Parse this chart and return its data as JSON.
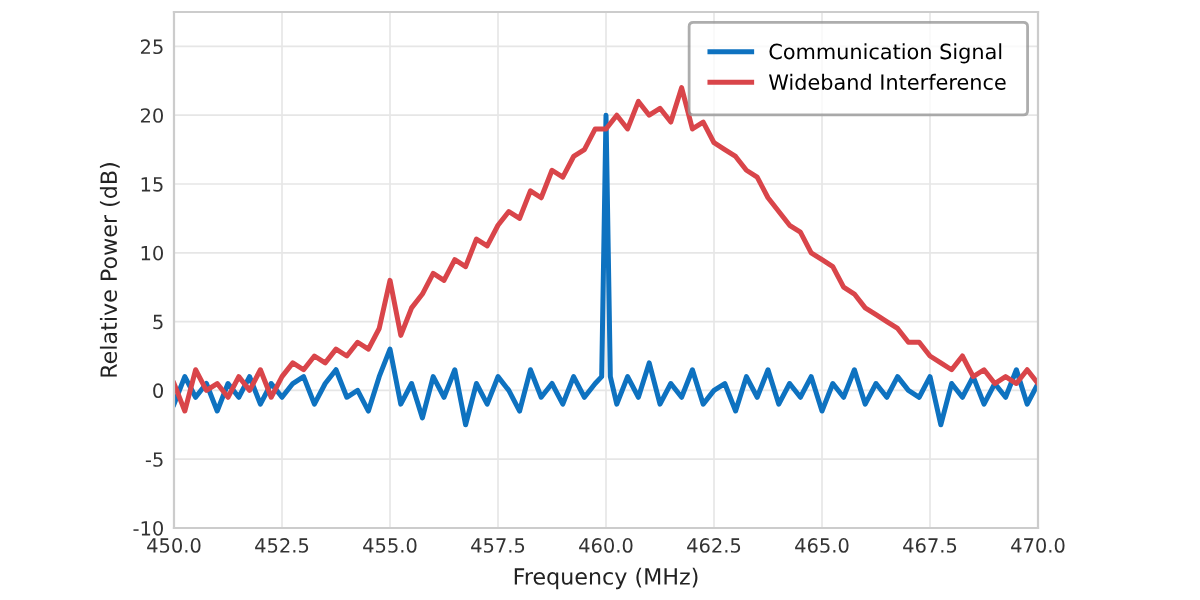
{
  "chart_data": {
    "type": "line",
    "xlabel": "Frequency (MHz)",
    "ylabel": "Relative Power (dB)",
    "xlim": [
      450,
      470
    ],
    "xticks": [
      {
        "value": 450,
        "label": "450.0"
      },
      452.5,
      {
        "value": 455,
        "label": "455.0"
      },
      457.5,
      {
        "value": 460,
        "label": "460.0"
      },
      462.5,
      {
        "value": 465,
        "label": "465.0"
      },
      467.5,
      {
        "value": 470,
        "label": "470.0"
      }
    ],
    "ylim": [
      -10,
      27.5
    ],
    "yticks": [
      -10,
      -5,
      0,
      5,
      10,
      15,
      20,
      25
    ],
    "grid": true,
    "legend": "top right",
    "line_style": "solid",
    "marker": "none",
    "series": [
      {
        "name": "Communication Signal",
        "color": "#0e72c0",
        "x": [
          450,
          450.25,
          450.5,
          450.75,
          451,
          451.25,
          451.5,
          451.75,
          452,
          452.25,
          452.5,
          452.75,
          453,
          453.25,
          453.5,
          453.75,
          454,
          454.25,
          454.5,
          454.75,
          455,
          455.25,
          455.5,
          455.75,
          456,
          456.25,
          456.5,
          456.75,
          457,
          457.25,
          457.5,
          457.75,
          458,
          458.25,
          458.5,
          458.75,
          459,
          459.25,
          459.5,
          459.75,
          459.9,
          460,
          460.1,
          460.25,
          460.5,
          460.75,
          461,
          461.25,
          461.5,
          461.75,
          462,
          462.25,
          462.5,
          462.75,
          463,
          463.25,
          463.5,
          463.75,
          464,
          464.25,
          464.5,
          464.75,
          465,
          465.25,
          465.5,
          465.75,
          466,
          466.25,
          466.5,
          466.75,
          467,
          467.25,
          467.5,
          467.75,
          468,
          468.25,
          468.5,
          468.75,
          469,
          469.25,
          469.5,
          469.75,
          470
        ],
        "values": [
          -1,
          1,
          -0.5,
          0.5,
          -1.5,
          0.5,
          -0.5,
          1,
          -1,
          0.5,
          -0.5,
          0.5,
          1,
          -1,
          0.5,
          1.5,
          -0.5,
          0,
          -1.5,
          1,
          3,
          -1,
          0.5,
          -2,
          1,
          -0.5,
          1.5,
          -2.5,
          0.5,
          -1,
          1,
          0,
          -1.5,
          1.5,
          -0.5,
          0.5,
          -1,
          1,
          -0.5,
          0.5,
          1,
          20,
          1,
          -1,
          1,
          -0.5,
          2,
          -1,
          0.5,
          -0.5,
          1.5,
          -1,
          0,
          0.5,
          -1.5,
          1,
          -0.5,
          1.5,
          -1,
          0.5,
          -0.5,
          1,
          -1.5,
          0.5,
          -0.5,
          1.5,
          -1,
          0.5,
          -0.5,
          1,
          0,
          -0.5,
          1,
          -2.5,
          0.5,
          -0.5,
          1,
          -1,
          0.5,
          -0.5,
          1.5,
          -1,
          0.5
        ]
      },
      {
        "name": "Wideband Interference",
        "color": "#d9454a",
        "x": [
          450,
          450.25,
          450.5,
          450.75,
          451,
          451.25,
          451.5,
          451.75,
          452,
          452.25,
          452.5,
          452.75,
          453,
          453.25,
          453.5,
          453.75,
          454,
          454.25,
          454.5,
          454.75,
          455,
          455.25,
          455.5,
          455.75,
          456,
          456.25,
          456.5,
          456.75,
          457,
          457.25,
          457.5,
          457.75,
          458,
          458.25,
          458.5,
          458.75,
          459,
          459.25,
          459.5,
          459.75,
          460,
          460.25,
          460.5,
          460.75,
          461,
          461.25,
          461.5,
          461.75,
          462,
          462.25,
          462.5,
          462.75,
          463,
          463.25,
          463.5,
          463.75,
          464,
          464.25,
          464.5,
          464.75,
          465,
          465.25,
          465.5,
          465.75,
          466,
          466.25,
          466.5,
          466.75,
          467,
          467.25,
          467.5,
          467.75,
          468,
          468.25,
          468.5,
          468.75,
          469,
          469.25,
          469.5,
          469.75,
          470
        ],
        "values": [
          0.5,
          -1.5,
          1.5,
          0,
          0.5,
          -0.5,
          1,
          0,
          1.5,
          -0.5,
          1,
          2,
          1.5,
          2.5,
          2,
          3,
          2.5,
          3.5,
          3,
          4.5,
          8,
          4,
          6,
          7,
          8.5,
          8,
          9.5,
          9,
          11,
          10.5,
          12,
          13,
          12.5,
          14.5,
          14,
          16,
          15.5,
          17,
          17.5,
          19,
          19,
          20,
          19,
          21,
          20,
          20.5,
          19.5,
          22,
          19,
          19.5,
          18,
          17.5,
          17,
          16,
          15.5,
          14,
          13,
          12,
          11.5,
          10,
          9.5,
          9,
          7.5,
          7,
          6,
          5.5,
          5,
          4.5,
          3.5,
          3.5,
          2.5,
          2,
          1.5,
          2.5,
          1,
          1.5,
          0.5,
          1,
          0.5,
          1.5,
          0.5
        ]
      }
    ]
  }
}
